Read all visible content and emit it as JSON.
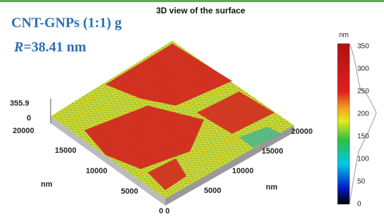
{
  "header": {
    "title": "CNT-GNPs (1:1) g",
    "radius_symbol": "R",
    "radius_value": "=38.41 nm"
  },
  "plot": {
    "title": "3D view of the surface",
    "z_axis": {
      "labels": [
        "355.9",
        "0"
      ]
    },
    "left_axis": {
      "ticks": [
        "20000",
        "15000",
        "10000",
        "5000"
      ],
      "unit": "nm"
    },
    "right_axis": {
      "ticks": [
        "20000",
        "15000",
        "10000",
        "5000"
      ],
      "unit": "nm"
    },
    "origin": "0 0"
  },
  "colorbar": {
    "unit": "nm",
    "ticks": [
      "350",
      "300",
      "250",
      "200",
      "150",
      "100",
      "50",
      "0"
    ]
  }
}
